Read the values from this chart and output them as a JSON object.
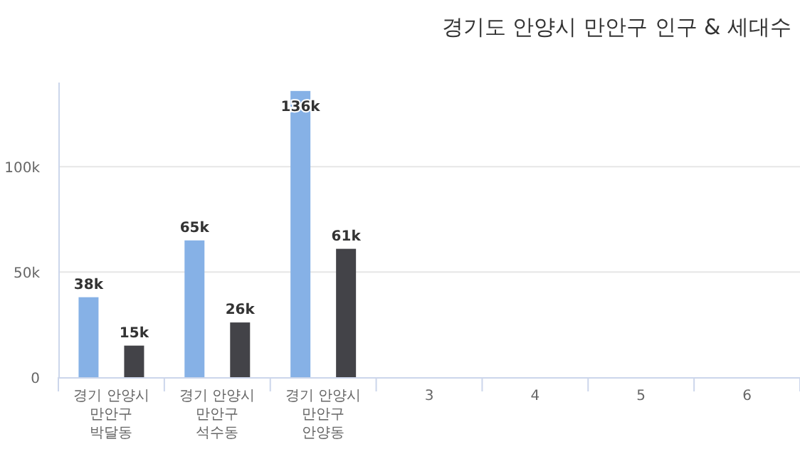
{
  "chart_data": {
    "type": "bar",
    "title": "경기도 안양시 만안구 인구 & 세대수",
    "categories": [
      "경기 안양시\n만안구\n박달동",
      "경기 안양시\n만안구\n석수동",
      "경기 안양시\n만안구\n안양동",
      "3",
      "4",
      "5",
      "6"
    ],
    "series": [
      {
        "color": "#86b1e6",
        "values": [
          38000,
          65000,
          136000,
          null,
          null,
          null,
          null
        ],
        "value_labels": [
          "38k",
          "65k",
          "136k",
          null,
          null,
          null,
          null
        ]
      },
      {
        "color": "#434348",
        "values": [
          15000,
          26000,
          61000,
          null,
          null,
          null,
          null
        ],
        "value_labels": [
          "15k",
          "26k",
          "61k",
          null,
          null,
          null,
          null
        ]
      }
    ],
    "yticks": [
      0,
      {
        "value": 50000,
        "label": "50k"
      },
      {
        "value": 100000,
        "label": "100k"
      }
    ],
    "ylim": [
      0,
      140000
    ],
    "grid": "y"
  }
}
